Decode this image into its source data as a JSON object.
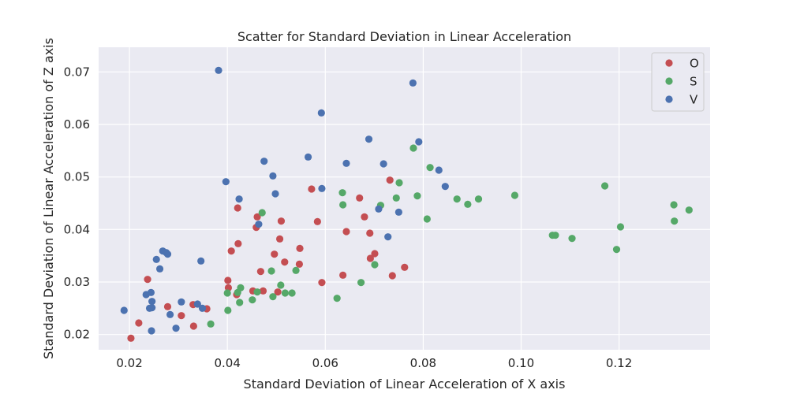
{
  "chart_data": {
    "type": "scatter",
    "title": "Scatter for Standard Deviation in Linear Acceleration",
    "xlabel": "Standard Deviation of Linear Acceleration of X axis",
    "ylabel": "Standard Deviation of Linear Acceleration of Z axis",
    "xlim": [
      0.0137,
      0.1386
    ],
    "ylim": [
      0.0171,
      0.0747
    ],
    "xticks": [
      0.02,
      0.04,
      0.06,
      0.08,
      0.1,
      0.12
    ],
    "xtick_labels": [
      "0.02",
      "0.04",
      "0.06",
      "0.08",
      "0.10",
      "0.12"
    ],
    "yticks": [
      0.02,
      0.03,
      0.04,
      0.05,
      0.06,
      0.07
    ],
    "ytick_labels": [
      "0.02",
      "0.03",
      "0.04",
      "0.05",
      "0.06",
      "0.07"
    ],
    "grid": true,
    "legend_position": "top-right",
    "series": [
      {
        "name": "O",
        "color": "#c44e52",
        "points": [
          [
            0.0203,
            0.0193
          ],
          [
            0.0219,
            0.0222
          ],
          [
            0.0237,
            0.0305
          ],
          [
            0.0278,
            0.0253
          ],
          [
            0.0306,
            0.0236
          ],
          [
            0.033,
            0.0257
          ],
          [
            0.0331,
            0.0216
          ],
          [
            0.0358,
            0.0249
          ],
          [
            0.0401,
            0.0303
          ],
          [
            0.0402,
            0.0289
          ],
          [
            0.0408,
            0.0359
          ],
          [
            0.0419,
            0.0276
          ],
          [
            0.0421,
            0.0441
          ],
          [
            0.0422,
            0.0373
          ],
          [
            0.0452,
            0.0283
          ],
          [
            0.0459,
            0.0404
          ],
          [
            0.0461,
            0.0424
          ],
          [
            0.0468,
            0.032
          ],
          [
            0.0473,
            0.0283
          ],
          [
            0.0496,
            0.0353
          ],
          [
            0.0503,
            0.0281
          ],
          [
            0.0507,
            0.0382
          ],
          [
            0.051,
            0.0416
          ],
          [
            0.0517,
            0.0338
          ],
          [
            0.0547,
            0.0334
          ],
          [
            0.0548,
            0.0364
          ],
          [
            0.0572,
            0.0477
          ],
          [
            0.0584,
            0.0415
          ],
          [
            0.0593,
            0.0299
          ],
          [
            0.0636,
            0.0313
          ],
          [
            0.0643,
            0.0396
          ],
          [
            0.067,
            0.046
          ],
          [
            0.068,
            0.0424
          ],
          [
            0.0691,
            0.0393
          ],
          [
            0.0692,
            0.0345
          ],
          [
            0.0701,
            0.0354
          ],
          [
            0.0732,
            0.0494
          ],
          [
            0.0737,
            0.0312
          ],
          [
            0.0762,
            0.0328
          ]
        ]
      },
      {
        "name": "S",
        "color": "#55a868",
        "points": [
          [
            0.0366,
            0.022
          ],
          [
            0.04,
            0.0279
          ],
          [
            0.0401,
            0.0246
          ],
          [
            0.0421,
            0.028
          ],
          [
            0.0425,
            0.0261
          ],
          [
            0.0427,
            0.0289
          ],
          [
            0.0451,
            0.0266
          ],
          [
            0.0461,
            0.0281
          ],
          [
            0.0471,
            0.0432
          ],
          [
            0.049,
            0.0321
          ],
          [
            0.0493,
            0.0272
          ],
          [
            0.0509,
            0.0294
          ],
          [
            0.0518,
            0.0279
          ],
          [
            0.0532,
            0.0279
          ],
          [
            0.054,
            0.0322
          ],
          [
            0.0624,
            0.0269
          ],
          [
            0.0635,
            0.047
          ],
          [
            0.0636,
            0.0447
          ],
          [
            0.0673,
            0.0299
          ],
          [
            0.0701,
            0.0333
          ],
          [
            0.0713,
            0.0446
          ],
          [
            0.0745,
            0.046
          ],
          [
            0.0751,
            0.0489
          ],
          [
            0.078,
            0.0555
          ],
          [
            0.0788,
            0.0464
          ],
          [
            0.0808,
            0.042
          ],
          [
            0.0814,
            0.0518
          ],
          [
            0.0869,
            0.0458
          ],
          [
            0.0891,
            0.0448
          ],
          [
            0.0913,
            0.0458
          ],
          [
            0.0987,
            0.0465
          ],
          [
            0.1064,
            0.0389
          ],
          [
            0.107,
            0.0389
          ],
          [
            0.1104,
            0.0383
          ],
          [
            0.1171,
            0.0483
          ],
          [
            0.1195,
            0.0362
          ],
          [
            0.1203,
            0.0405
          ],
          [
            0.1312,
            0.0447
          ],
          [
            0.1313,
            0.0416
          ],
          [
            0.1343,
            0.0437
          ]
        ]
      },
      {
        "name": "V",
        "color": "#4c72b0",
        "points": [
          [
            0.0189,
            0.0246
          ],
          [
            0.0234,
            0.0276
          ],
          [
            0.0241,
            0.025
          ],
          [
            0.0244,
            0.028
          ],
          [
            0.0245,
            0.0207
          ],
          [
            0.0246,
            0.0263
          ],
          [
            0.0246,
            0.0251
          ],
          [
            0.0255,
            0.0343
          ],
          [
            0.0262,
            0.0325
          ],
          [
            0.0268,
            0.0359
          ],
          [
            0.0275,
            0.0356
          ],
          [
            0.0278,
            0.0353
          ],
          [
            0.0283,
            0.0238
          ],
          [
            0.0295,
            0.0212
          ],
          [
            0.0306,
            0.0262
          ],
          [
            0.0339,
            0.0258
          ],
          [
            0.0346,
            0.034
          ],
          [
            0.0349,
            0.025
          ],
          [
            0.0382,
            0.0703
          ],
          [
            0.0397,
            0.0491
          ],
          [
            0.0424,
            0.0458
          ],
          [
            0.0464,
            0.041
          ],
          [
            0.0475,
            0.053
          ],
          [
            0.0493,
            0.0502
          ],
          [
            0.0498,
            0.0468
          ],
          [
            0.0565,
            0.0538
          ],
          [
            0.0592,
            0.0622
          ],
          [
            0.0593,
            0.0478
          ],
          [
            0.0643,
            0.0526
          ],
          [
            0.0689,
            0.0572
          ],
          [
            0.0709,
            0.0439
          ],
          [
            0.0719,
            0.0525
          ],
          [
            0.0728,
            0.0386
          ],
          [
            0.075,
            0.0433
          ],
          [
            0.0779,
            0.0679
          ],
          [
            0.0791,
            0.0567
          ],
          [
            0.0832,
            0.0513
          ],
          [
            0.0845,
            0.0482
          ]
        ]
      }
    ]
  }
}
